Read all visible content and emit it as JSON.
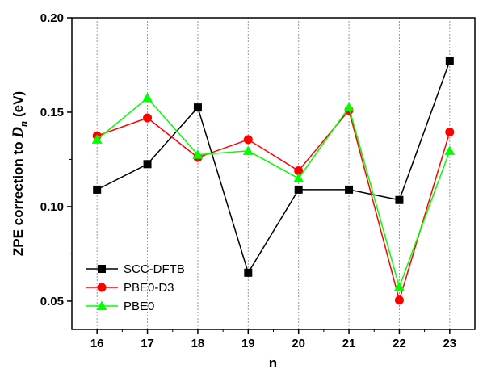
{
  "chart_data": {
    "type": "line",
    "xlabel": "n",
    "ylabel_prefix": "ZPE correction to ",
    "ylabel_symbol": "D",
    "ylabel_subscript": "n",
    "ylabel_suffix": " (eV)",
    "x": [
      16,
      17,
      18,
      19,
      20,
      21,
      22,
      23
    ],
    "xlim": [
      15.5,
      23.5
    ],
    "ylim": [
      0.035,
      0.2
    ],
    "yticks": [
      0.05,
      0.1,
      0.15,
      0.2
    ],
    "ytick_labels": [
      "0.05",
      "0.10",
      "0.15",
      "0.20"
    ],
    "grid": "vertical dotted",
    "legend_position": "bottom-left",
    "series": [
      {
        "name": "SCC-DFTB",
        "color": "#000000",
        "marker": "square",
        "values": [
          0.109,
          0.1225,
          0.1525,
          0.065,
          0.109,
          0.109,
          0.1035,
          0.177
        ]
      },
      {
        "name": "PBE0-D3",
        "color": "#ff0000",
        "marker": "circle",
        "values": [
          0.1375,
          0.147,
          0.126,
          0.1355,
          0.119,
          0.151,
          0.0505,
          0.1395
        ]
      },
      {
        "name": "PBE0",
        "color": "#00ff00",
        "marker": "triangle",
        "values": [
          0.1355,
          0.1575,
          0.1275,
          0.1295,
          0.115,
          0.1525,
          0.0575,
          0.1295
        ]
      }
    ]
  }
}
